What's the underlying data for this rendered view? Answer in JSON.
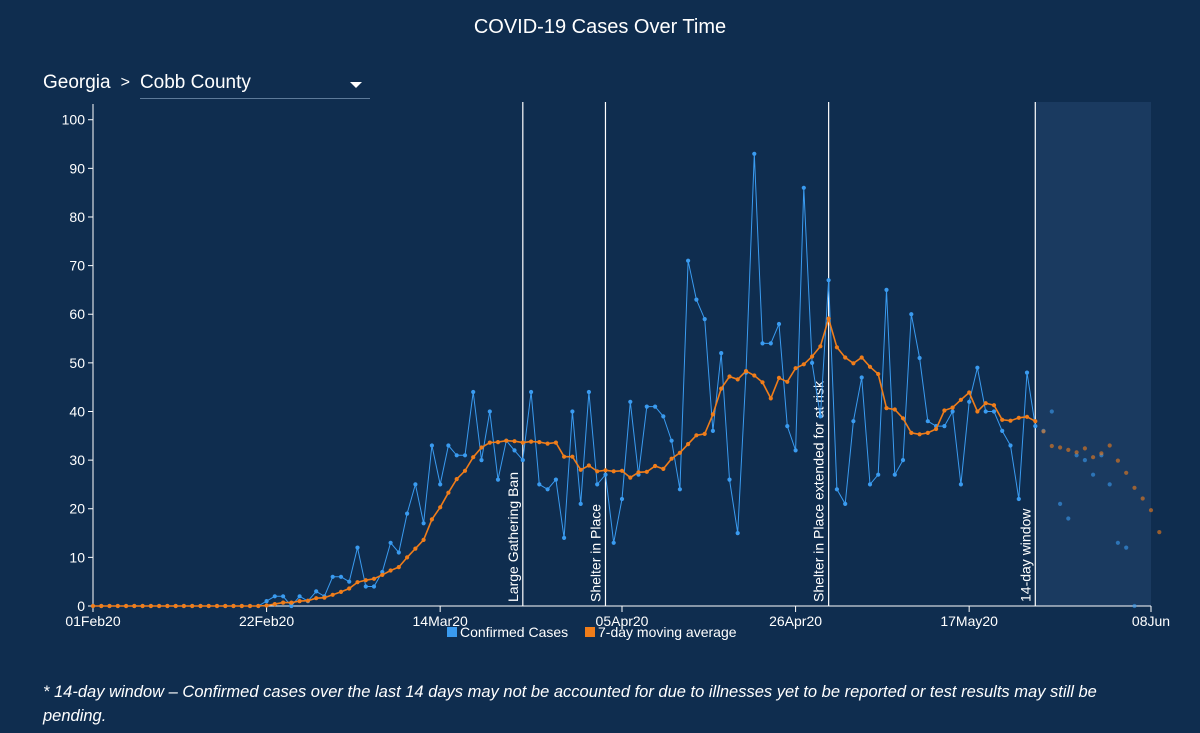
{
  "title": "COVID-19 Cases Over Time",
  "breadcrumb": {
    "state": "Georgia",
    "separator": ">",
    "county": "Cobb County"
  },
  "footnote": "* 14-day window – Confirmed cases over the last 14 days may not be accounted for due to illnesses yet to be reported or test results may still be pending.",
  "colors": {
    "background": "#0f2d4f",
    "confirmed": "#3a9bf0",
    "moving_average": "#f07d1a",
    "window_shade": "#1a3a60",
    "axis": "#ffffff"
  },
  "chart_data": {
    "type": "line",
    "title": "COVID-19 Cases Over Time",
    "xlabel": "",
    "ylabel": "",
    "x_start": "2020-02-01",
    "x_end": "2020-06-08",
    "ylim": [
      0,
      102
    ],
    "yticks": [
      0,
      10,
      20,
      30,
      40,
      50,
      60,
      70,
      80,
      90,
      100
    ],
    "xticks": [
      {
        "date": "2020-02-01",
        "label": "01Feb20"
      },
      {
        "date": "2020-02-22",
        "label": "22Feb20"
      },
      {
        "date": "2020-03-14",
        "label": "14Mar20"
      },
      {
        "date": "2020-04-05",
        "label": "05Apr20"
      },
      {
        "date": "2020-04-26",
        "label": "26Apr20"
      },
      {
        "date": "2020-05-17",
        "label": "17May20"
      },
      {
        "date": "2020-06-08",
        "label": "08Jun"
      }
    ],
    "grid": false,
    "legend": "bottom-center",
    "series": [
      {
        "name": "Confirmed Cases",
        "color": "#3a9bf0",
        "values": [
          0,
          0,
          0,
          0,
          0,
          0,
          0,
          0,
          0,
          0,
          0,
          0,
          0,
          0,
          0,
          0,
          0,
          0,
          0,
          0,
          0,
          1,
          2,
          2,
          0,
          2,
          1,
          3,
          2,
          6,
          6,
          5,
          12,
          4,
          4,
          7,
          13,
          11,
          19,
          25,
          17,
          33,
          25,
          33,
          31,
          31,
          44,
          30,
          40,
          26,
          34,
          32,
          30,
          44,
          25,
          24,
          26,
          14,
          40,
          21,
          44,
          25,
          27,
          13,
          22,
          42,
          27,
          41,
          41,
          39,
          34,
          24,
          71,
          63,
          59,
          36,
          52,
          26,
          15,
          48,
          93,
          54,
          54,
          58,
          37,
          32,
          86,
          50,
          39,
          67,
          24,
          21,
          38,
          47,
          25,
          27,
          65,
          27,
          30,
          60,
          51,
          38,
          37,
          37,
          40,
          25,
          42,
          49,
          40,
          40,
          36,
          33,
          22,
          48,
          37,
          36,
          40,
          21,
          18,
          31,
          30,
          27,
          31,
          25,
          13,
          12,
          0
        ]
      },
      {
        "name": "7-day moving average",
        "color": "#f07d1a",
        "values": [
          0,
          0,
          0,
          0,
          0,
          0,
          0,
          0,
          0,
          0,
          0,
          0,
          0,
          0,
          0,
          0,
          0,
          0,
          0,
          0,
          0,
          0.1,
          0.4,
          0.7,
          0.7,
          1.0,
          1.1,
          1.6,
          1.7,
          2.3,
          2.9,
          3.6,
          4.9,
          5.3,
          5.6,
          6.4,
          7.3,
          8.0,
          10,
          11.8,
          13.6,
          17.8,
          20.3,
          23.3,
          26.1,
          27.8,
          30.6,
          32.6,
          33.6,
          33.7,
          34.0,
          33.9,
          33.6,
          33.8,
          33.7,
          33.4,
          33.6,
          30.7,
          30.7,
          28.0,
          28.9,
          27.7,
          27.9,
          27.7,
          27.8,
          26.4,
          27.5,
          27.6,
          28.8,
          28.2,
          30.3,
          31.5,
          33.3,
          35.1,
          35.4,
          39.4,
          44.7,
          47.2,
          46.6,
          48.3,
          47.4,
          46.0,
          42.7,
          46.9,
          46.1,
          48.9,
          49.7,
          51.3,
          53.4,
          59.1,
          53.2,
          51.1,
          49.9,
          51.1,
          49.2,
          47.7,
          40.7,
          40.4,
          38.6,
          35.6,
          35.3,
          35.6,
          36.4,
          40.2,
          40.8,
          42.4,
          43.9,
          40.0,
          41.7,
          41.3,
          38.3,
          38.1,
          38.7,
          38.9,
          38.0,
          35.9,
          32.9,
          32.6,
          32.1,
          31.6,
          32.4,
          30.6,
          31.4,
          33.0,
          29.9,
          27.4,
          24.3,
          22.1,
          19.7,
          15.2
        ]
      }
    ],
    "annotations": [
      {
        "date": "2020-03-24",
        "label": "Large Gathering Ban"
      },
      {
        "date": "2020-04-03",
        "label": "Shelter in Place"
      },
      {
        "date": "2020-04-30",
        "label": "Shelter in Place extended for at risk"
      },
      {
        "date": "2020-05-25",
        "label": "14-day window"
      }
    ],
    "shaded_region": {
      "from": "2020-05-25",
      "to": "2020-06-08",
      "label": "14-day window"
    }
  },
  "legend": {
    "items": [
      {
        "name": "Confirmed Cases",
        "color": "#3a9bf0"
      },
      {
        "name": "7-day moving average",
        "color": "#f07d1a"
      }
    ]
  }
}
